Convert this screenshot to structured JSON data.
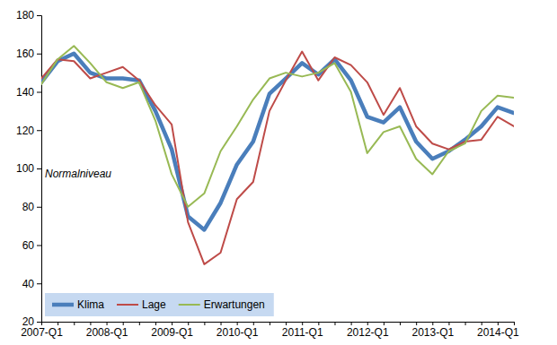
{
  "chart_data": {
    "type": "line",
    "annotation": "Normalniveau",
    "categories": [
      "2007-Q1",
      null,
      null,
      null,
      "2008-Q1",
      null,
      null,
      null,
      "2009-Q1",
      null,
      null,
      null,
      "2010-Q1",
      null,
      null,
      null,
      "2011-Q1",
      null,
      null,
      null,
      "2012-Q1",
      null,
      null,
      null,
      "2013-Q1",
      null,
      null,
      null,
      "2014-Q1",
      null
    ],
    "series": [
      {
        "name": "Klima",
        "color": "#4a7ebb",
        "values": [
          145,
          156,
          160,
          150,
          147,
          147,
          146,
          130,
          110,
          75,
          68,
          82,
          102,
          114,
          139,
          147,
          155,
          149,
          157,
          146,
          127,
          124,
          132,
          114,
          105,
          109,
          115,
          122,
          132,
          129
        ]
      },
      {
        "name": "Lage",
        "color": "#be4b48",
        "values": [
          147,
          157,
          156,
          147,
          150,
          153,
          146,
          133,
          123,
          72,
          50,
          56,
          84,
          93,
          130,
          146,
          161,
          146,
          158,
          154,
          145,
          128,
          142,
          122,
          113,
          110,
          114,
          115,
          127,
          122
        ]
      },
      {
        "name": "Erwartungen",
        "color": "#98b954",
        "values": [
          144,
          157,
          164,
          155,
          145,
          142,
          145,
          125,
          97,
          80,
          87,
          109,
          122,
          136,
          147,
          150,
          148,
          150,
          155,
          140,
          108,
          119,
          122,
          105,
          97,
          109,
          113,
          130,
          138,
          137
        ]
      }
    ],
    "ylim": [
      20,
      180
    ],
    "yticks": [
      20,
      40,
      60,
      80,
      100,
      120,
      140,
      160,
      180
    ],
    "grid": false,
    "legend": "lower left"
  }
}
